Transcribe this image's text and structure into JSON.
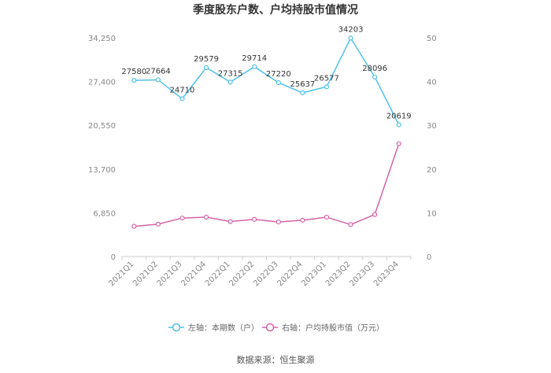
{
  "chart_data": {
    "type": "line",
    "title": "季度股东户数、户均持股市值情况",
    "categories": [
      "2021Q1",
      "2021Q2",
      "2021Q3",
      "2021Q4",
      "2022Q1",
      "2022Q2",
      "2022Q3",
      "2022Q4",
      "2023Q1",
      "2023Q2",
      "2023Q3",
      "2023Q4"
    ],
    "left_axis": {
      "ylim": [
        0,
        34250
      ],
      "ticks": [
        "0",
        "6,850",
        "13,700",
        "20,550",
        "27,400",
        "34,250"
      ]
    },
    "right_axis": {
      "ylim": [
        0,
        50
      ],
      "ticks": [
        "0",
        "10",
        "20",
        "30",
        "40",
        "50"
      ]
    },
    "series": [
      {
        "name": "左轴：本期数（户）",
        "axis": "left",
        "color": "#4FC1EA",
        "values": [
          27580,
          27664,
          24710,
          29579,
          27315,
          29714,
          27220,
          25637,
          26577,
          34203,
          28096,
          20619
        ],
        "labels": [
          "27580",
          "27664",
          "24710",
          "29579",
          "27315",
          "29714",
          "27220",
          "25637",
          "26577",
          "34203",
          "28096",
          "20619"
        ]
      },
      {
        "name": "右轴：户均持股市值（万元）",
        "axis": "right",
        "color": "#D264A8",
        "values": [
          6.9,
          7.4,
          8.8,
          9.0,
          8.0,
          8.5,
          7.9,
          8.3,
          9.0,
          7.3,
          9.6,
          25.8
        ]
      }
    ],
    "legend_position": "bottom",
    "grid": false,
    "source": "数据来源：恒生聚源"
  }
}
